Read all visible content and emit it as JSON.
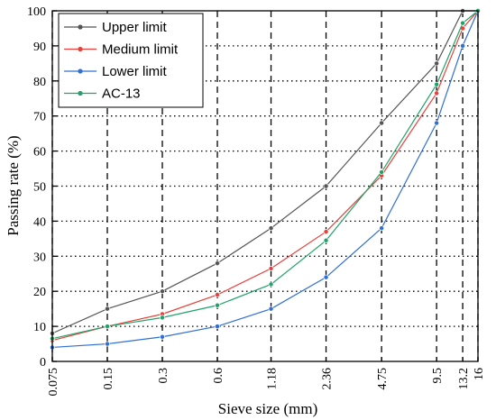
{
  "chart_data": {
    "type": "line",
    "xlabel": "Sieve size (mm)",
    "ylabel": "Passing rate (%)",
    "x_scale": "log",
    "xlim": [
      0.075,
      16
    ],
    "ylim": [
      0,
      100
    ],
    "y_ticks": [
      0,
      10,
      20,
      30,
      40,
      50,
      60,
      70,
      80,
      90,
      100
    ],
    "categories": [
      "0.075",
      "0.15",
      "0.3",
      "0.6",
      "1.18",
      "2.36",
      "4.75",
      "9.5",
      "13.2",
      "16"
    ],
    "x": [
      0.075,
      0.15,
      0.3,
      0.6,
      1.18,
      2.36,
      4.75,
      9.5,
      13.2,
      16
    ],
    "grid": true,
    "legend_position": "top-left",
    "series": [
      {
        "name": "Upper limit",
        "color": "#555555",
        "values": [
          8,
          15,
          20,
          28,
          38,
          50,
          68,
          85,
          100,
          100
        ]
      },
      {
        "name": "Medium limit",
        "color": "#e8403a",
        "values": [
          6,
          10,
          13.5,
          19,
          26.5,
          37,
          53,
          76.5,
          95,
          100
        ]
      },
      {
        "name": "Lower limit",
        "color": "#2f6fd6",
        "values": [
          4,
          5,
          7,
          10,
          15,
          24,
          38,
          68,
          90,
          100
        ]
      },
      {
        "name": "AC-13",
        "color": "#1fa36a",
        "values": [
          6.5,
          10,
          12.5,
          16,
          22,
          34.5,
          54,
          79,
          96.5,
          100
        ]
      }
    ]
  }
}
